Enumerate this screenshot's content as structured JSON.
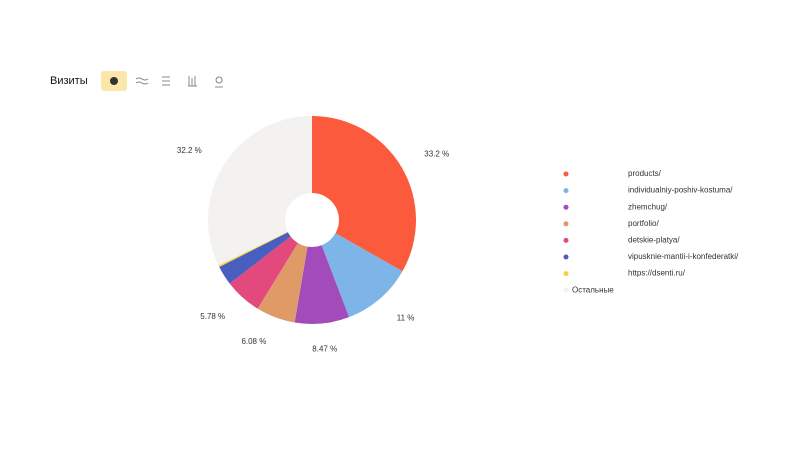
{
  "header": {
    "title": "Визиты"
  },
  "chart_data": {
    "type": "pie",
    "categories": [
      "products/",
      "individualniy-poshiv-kostuma/",
      "zhemchug/",
      "portfolio/",
      "detskie-platya/",
      "vipusknie-mantii-i-konfederatki/",
      "https://dsenti.ru/",
      "Остальные"
    ],
    "values": [
      33.2,
      11,
      8.47,
      6.08,
      5.78,
      3,
      0.27,
      32.2
    ],
    "value_labels": [
      "33.2 %",
      "11 %",
      "8.47 %",
      "6.08 %",
      "5.78 %",
      null,
      null,
      "32.2 %"
    ],
    "colors": [
      "#fc5a3c",
      "#7db5e8",
      "#a24cbb",
      "#e09a67",
      "#e2497d",
      "#4a5ec0",
      "#f5d33f",
      "#f3f2f1"
    ]
  }
}
